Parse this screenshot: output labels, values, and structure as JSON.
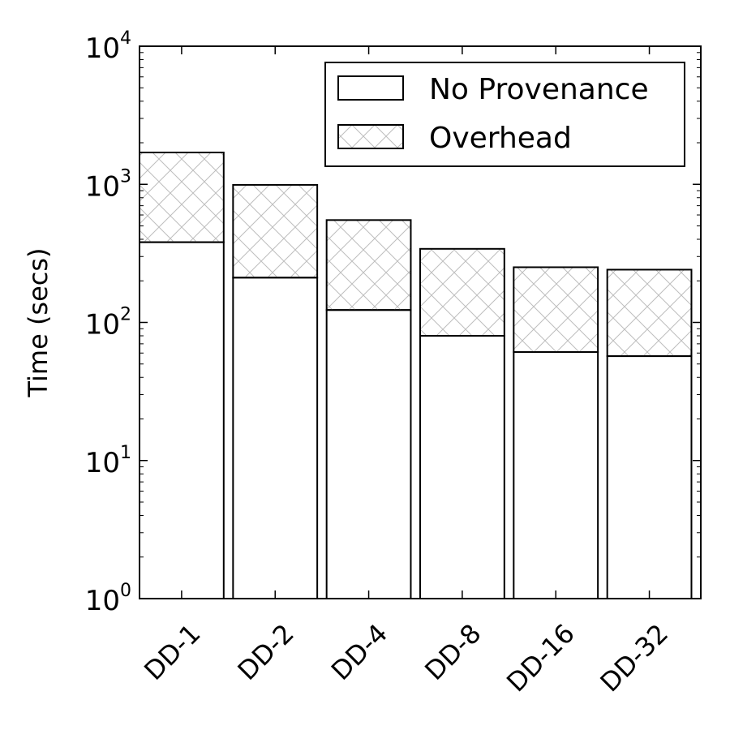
{
  "chart_data": {
    "type": "bar",
    "stacked": true,
    "y_scale": "log",
    "categories": [
      "DD-1",
      "DD-2",
      "DD-4",
      "DD-8",
      "DD-16",
      "DD-32"
    ],
    "series": [
      {
        "name": "No Provenance",
        "values": [
          380,
          210,
          122,
          79,
          60,
          56
        ],
        "fill": "plain"
      },
      {
        "name": "Overhead",
        "values": [
          1320,
          780,
          428,
          261,
          190,
          184
        ],
        "fill": "crosshatch"
      }
    ],
    "totals": [
      1700,
      990,
      550,
      340,
      250,
      240
    ],
    "xlabel": "",
    "ylabel": "Time (secs)",
    "ylim": [
      1,
      10000
    ],
    "yticks": [
      {
        "value": 1,
        "base": "10",
        "exp": "0"
      },
      {
        "value": 10,
        "base": "10",
        "exp": "1"
      },
      {
        "value": 100,
        "base": "10",
        "exp": "2"
      },
      {
        "value": 1000,
        "base": "10",
        "exp": "3"
      },
      {
        "value": 10000,
        "base": "10",
        "exp": "4"
      }
    ],
    "xtick_rotation": 45,
    "grid": false,
    "legend": "top-right",
    "colors": {
      "edge": "#000000",
      "hatch": "#bdbdbd",
      "fill": "#ffffff"
    }
  }
}
